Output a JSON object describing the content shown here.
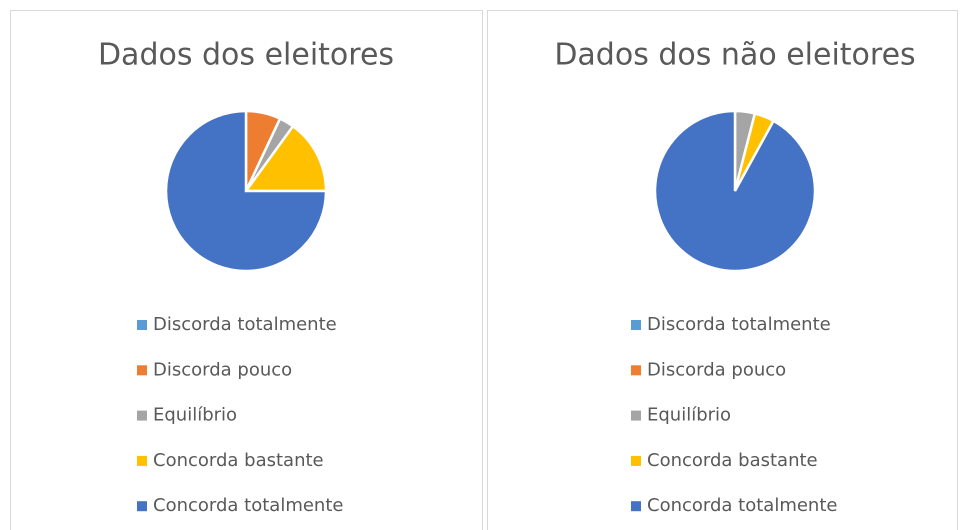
{
  "chart_data": [
    {
      "type": "pie",
      "title": "Dados dos eleitores",
      "categories": [
        "Discorda totalmente",
        "Discorda pouco",
        "Equilíbrio",
        "Concorda bastante",
        "Concorda totalmente"
      ],
      "values": [
        0,
        7,
        3,
        15,
        75
      ],
      "colors": [
        "#5b9bd5",
        "#ed7d31",
        "#a5a5a5",
        "#ffc000",
        "#4472c4"
      ],
      "legend": "bottom"
    },
    {
      "type": "pie",
      "title": "Dados dos não eleitores",
      "categories": [
        "Discorda totalmente",
        "Discorda pouco",
        "Equilíbrio",
        "Concorda bastante",
        "Concorda totalmente"
      ],
      "values": [
        0,
        0,
        4,
        4,
        92
      ],
      "colors": [
        "#5b9bd5",
        "#ed7d31",
        "#a5a5a5",
        "#ffc000",
        "#4472c4"
      ],
      "legend": "bottom"
    }
  ]
}
